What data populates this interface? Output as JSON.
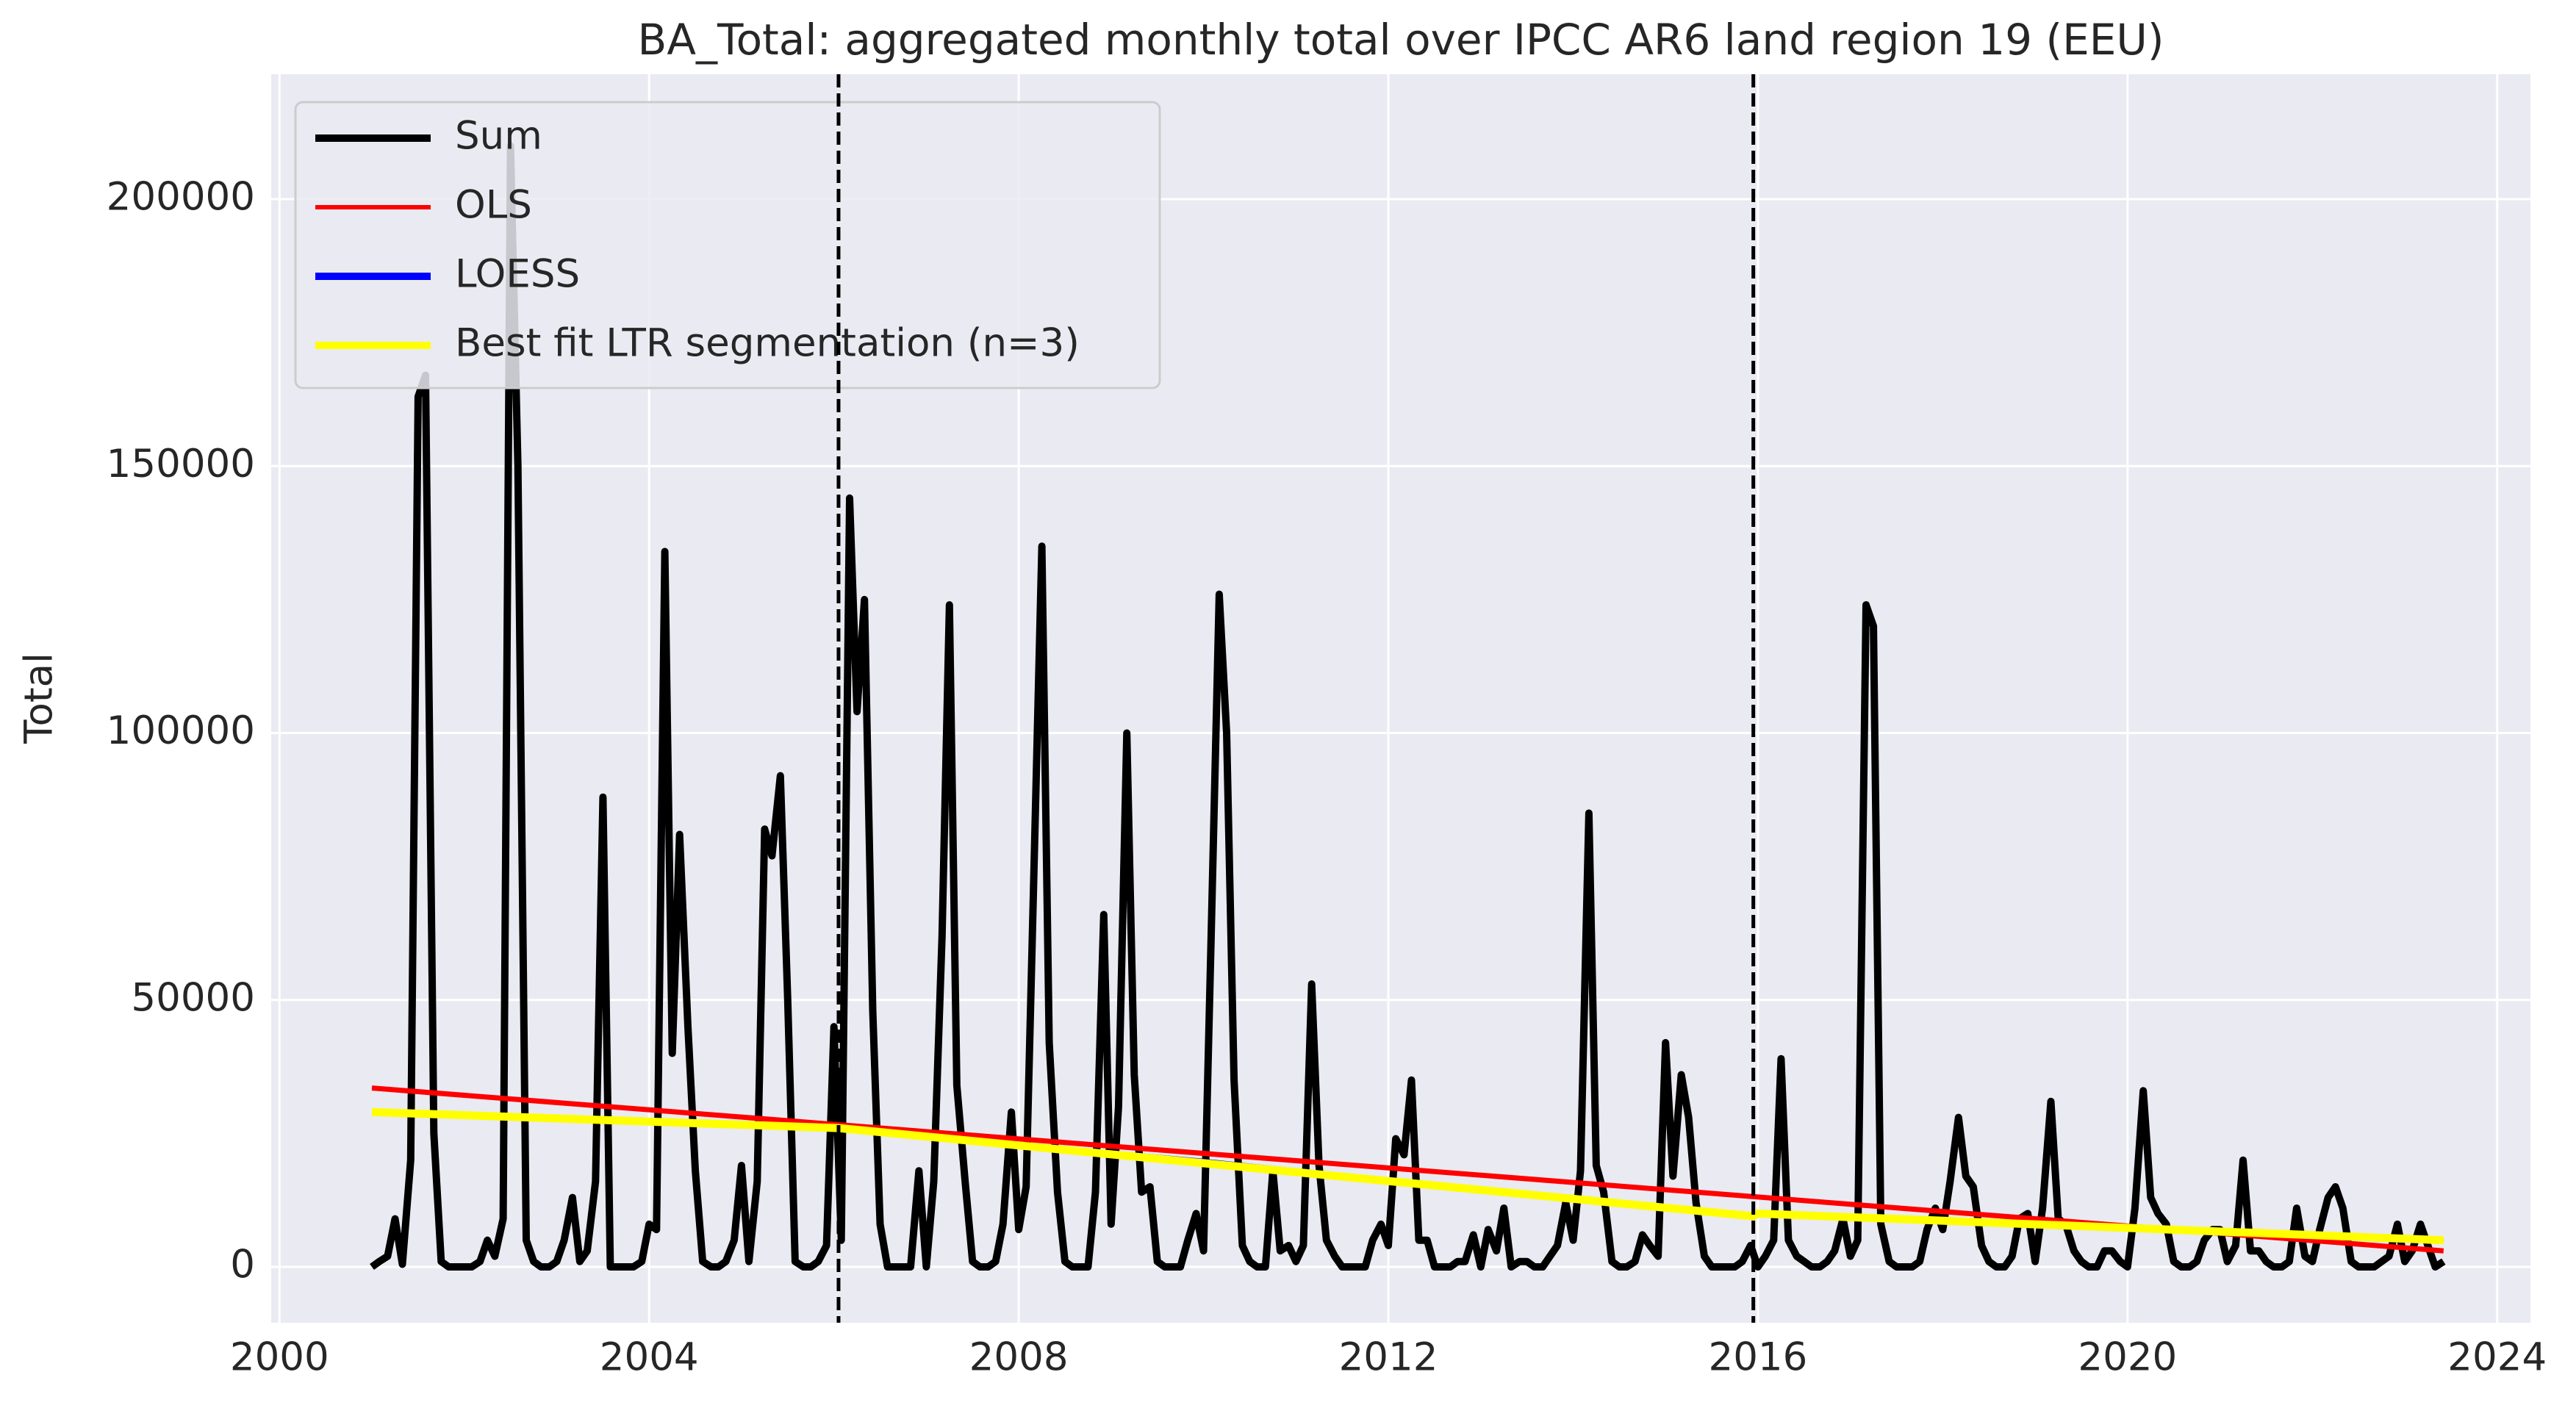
{
  "chart_data": {
    "type": "line",
    "title": "BA_Total: aggregated monthly total over IPCC AR6 land region 19 (EEU)",
    "y_label": "Total",
    "xlim": [
      1999.91,
      2024.36
    ],
    "xticks": [
      2000,
      2004,
      2008,
      2012,
      2016,
      2020,
      2024
    ],
    "ylim": [
      -10460,
      223400
    ],
    "yticks": [
      0,
      50000,
      100000,
      150000,
      200000
    ],
    "grid": true,
    "legend": "upper-left",
    "vlines": [
      2006.05,
      2015.95
    ],
    "series": [
      {
        "name": "Sum",
        "color": "#000000",
        "x": [
          2001,
          2001.08,
          2001.17,
          2001.25,
          2001.33,
          2001.42,
          2001.5,
          2001.58,
          2001.67,
          2001.75,
          2001.83,
          2001.92,
          2002,
          2002.08,
          2002.17,
          2002.25,
          2002.33,
          2002.42,
          2002.5,
          2002.58,
          2002.67,
          2002.75,
          2002.83,
          2002.92,
          2003,
          2003.08,
          2003.17,
          2003.25,
          2003.33,
          2003.42,
          2003.5,
          2003.58,
          2003.67,
          2003.75,
          2003.83,
          2003.92,
          2004,
          2004.08,
          2004.17,
          2004.25,
          2004.33,
          2004.42,
          2004.5,
          2004.58,
          2004.67,
          2004.75,
          2004.83,
          2004.92,
          2005,
          2005.08,
          2005.17,
          2005.25,
          2005.33,
          2005.42,
          2005.5,
          2005.58,
          2005.67,
          2005.75,
          2005.83,
          2005.92,
          2006,
          2006.08,
          2006.17,
          2006.25,
          2006.33,
          2006.42,
          2006.5,
          2006.58,
          2006.67,
          2006.75,
          2006.83,
          2006.92,
          2007,
          2007.08,
          2007.17,
          2007.25,
          2007.33,
          2007.42,
          2007.5,
          2007.58,
          2007.67,
          2007.75,
          2007.83,
          2007.92,
          2008,
          2008.08,
          2008.17,
          2008.25,
          2008.33,
          2008.42,
          2008.5,
          2008.58,
          2008.67,
          2008.75,
          2008.83,
          2008.92,
          2009,
          2009.08,
          2009.17,
          2009.25,
          2009.33,
          2009.42,
          2009.5,
          2009.58,
          2009.67,
          2009.75,
          2009.83,
          2009.92,
          2010,
          2010.08,
          2010.17,
          2010.25,
          2010.33,
          2010.42,
          2010.5,
          2010.58,
          2010.67,
          2010.75,
          2010.83,
          2010.92,
          2011,
          2011.08,
          2011.17,
          2011.25,
          2011.33,
          2011.42,
          2011.5,
          2011.58,
          2011.67,
          2011.75,
          2011.83,
          2011.92,
          2012,
          2012.08,
          2012.17,
          2012.25,
          2012.33,
          2012.42,
          2012.5,
          2012.58,
          2012.67,
          2012.75,
          2012.83,
          2012.92,
          2013,
          2013.08,
          2013.17,
          2013.25,
          2013.33,
          2013.42,
          2013.5,
          2013.58,
          2013.67,
          2013.75,
          2013.83,
          2013.92,
          2014,
          2014.08,
          2014.17,
          2014.25,
          2014.33,
          2014.42,
          2014.5,
          2014.58,
          2014.67,
          2014.75,
          2014.83,
          2014.92,
          2015,
          2015.08,
          2015.17,
          2015.25,
          2015.33,
          2015.42,
          2015.5,
          2015.58,
          2015.67,
          2015.75,
          2015.83,
          2015.92,
          2016,
          2016.08,
          2016.17,
          2016.25,
          2016.33,
          2016.42,
          2016.5,
          2016.58,
          2016.67,
          2016.75,
          2016.83,
          2016.92,
          2017,
          2017.08,
          2017.17,
          2017.25,
          2017.33,
          2017.42,
          2017.5,
          2017.58,
          2017.67,
          2017.75,
          2017.83,
          2017.92,
          2018,
          2018.08,
          2018.17,
          2018.25,
          2018.33,
          2018.42,
          2018.5,
          2018.58,
          2018.67,
          2018.75,
          2018.83,
          2018.92,
          2019,
          2019.08,
          2019.17,
          2019.25,
          2019.33,
          2019.42,
          2019.5,
          2019.58,
          2019.67,
          2019.75,
          2019.83,
          2019.92,
          2020,
          2020.08,
          2020.17,
          2020.25,
          2020.33,
          2020.42,
          2020.5,
          2020.58,
          2020.67,
          2020.75,
          2020.83,
          2020.92,
          2021,
          2021.08,
          2021.17,
          2021.25,
          2021.33,
          2021.42,
          2021.5,
          2021.58,
          2021.67,
          2021.75,
          2021.83,
          2021.92,
          2022,
          2022.08,
          2022.17,
          2022.25,
          2022.33,
          2022.42,
          2022.5,
          2022.58,
          2022.67,
          2022.75,
          2022.83,
          2022.92,
          2023,
          2023.08,
          2023.17,
          2023.25,
          2023.33,
          2023.42
        ],
        "values": [
          0,
          1000,
          2000,
          9000,
          500,
          20000,
          163000,
          167000,
          25000,
          1000,
          0,
          0,
          0,
          0,
          1000,
          5000,
          2000,
          9000,
          210000,
          150000,
          5000,
          1000,
          0,
          0,
          1000,
          5000,
          13000,
          1000,
          3000,
          16000,
          88000,
          0,
          0,
          0,
          0,
          1000,
          8000,
          7000,
          134000,
          40000,
          81000,
          45000,
          18000,
          1000,
          0,
          0,
          1000,
          5000,
          19000,
          1000,
          16000,
          82000,
          77000,
          92000,
          50000,
          1000,
          0,
          0,
          1000,
          4000,
          45000,
          5000,
          144000,
          104000,
          125000,
          48000,
          8000,
          0,
          0,
          0,
          0,
          18000,
          0,
          16000,
          62000,
          124000,
          34000,
          16000,
          1000,
          0,
          0,
          1000,
          8000,
          29000,
          7000,
          15000,
          78000,
          135000,
          42000,
          14000,
          1000,
          0,
          0,
          0,
          14000,
          66000,
          8000,
          30000,
          100000,
          36000,
          14000,
          15000,
          1000,
          0,
          0,
          0,
          5000,
          10000,
          3000,
          60000,
          126000,
          100000,
          35000,
          4000,
          1000,
          0,
          0,
          18000,
          3000,
          4000,
          1000,
          4000,
          53000,
          19000,
          5000,
          2000,
          0,
          0,
          0,
          0,
          5000,
          8000,
          4000,
          24000,
          21000,
          35000,
          5000,
          5000,
          0,
          0,
          0,
          1000,
          1000,
          6000,
          0,
          7000,
          3000,
          11000,
          0,
          1000,
          1000,
          0,
          0,
          2000,
          4000,
          12000,
          5000,
          18000,
          85000,
          19000,
          14000,
          1000,
          0,
          0,
          1000,
          6000,
          4000,
          2000,
          42000,
          17000,
          36000,
          28000,
          12000,
          2000,
          0,
          0,
          0,
          0,
          1000,
          4000,
          0,
          2000,
          5000,
          39000,
          5000,
          2000,
          1000,
          0,
          0,
          1000,
          3000,
          9000,
          2000,
          5000,
          124000,
          120000,
          8000,
          1000,
          0,
          0,
          0,
          1000,
          7000,
          11000,
          7000,
          16000,
          28000,
          17000,
          15000,
          4000,
          1000,
          0,
          0,
          2000,
          9000,
          10000,
          1000,
          11000,
          31000,
          9000,
          8000,
          3000,
          1000,
          0,
          0,
          3000,
          3000,
          1000,
          0,
          11000,
          33000,
          13000,
          10000,
          8000,
          1000,
          0,
          0,
          1000,
          5000,
          7000,
          7000,
          1000,
          4000,
          20000,
          3000,
          3000,
          1000,
          0,
          0,
          1000,
          11000,
          2000,
          1000,
          7000,
          13000,
          15000,
          11000,
          1000,
          0,
          0,
          0,
          1000,
          2000,
          8000,
          1000,
          3000,
          8000,
          4000,
          0,
          1000
        ]
      },
      {
        "name": "OLS",
        "color": "#ff0000",
        "x": [
          2001,
          2023.42
        ],
        "values": [
          33500,
          3000
        ]
      },
      {
        "name": "LOESS",
        "color": "#0000ff",
        "x": [
          2001,
          2006,
          2010,
          2013,
          2015.95,
          2016,
          2019,
          2023.42
        ],
        "values": [
          29000,
          26000,
          20000,
          14500,
          9500,
          10000,
          7500,
          5000
        ]
      },
      {
        "name": "Best fit LTR segmentation (n=3)",
        "color": "#ffff00",
        "x": [
          2001,
          2006.05,
          2015.95,
          2016,
          2023.42
        ],
        "values": [
          29000,
          26000,
          9500,
          10000,
          5000
        ]
      }
    ]
  }
}
